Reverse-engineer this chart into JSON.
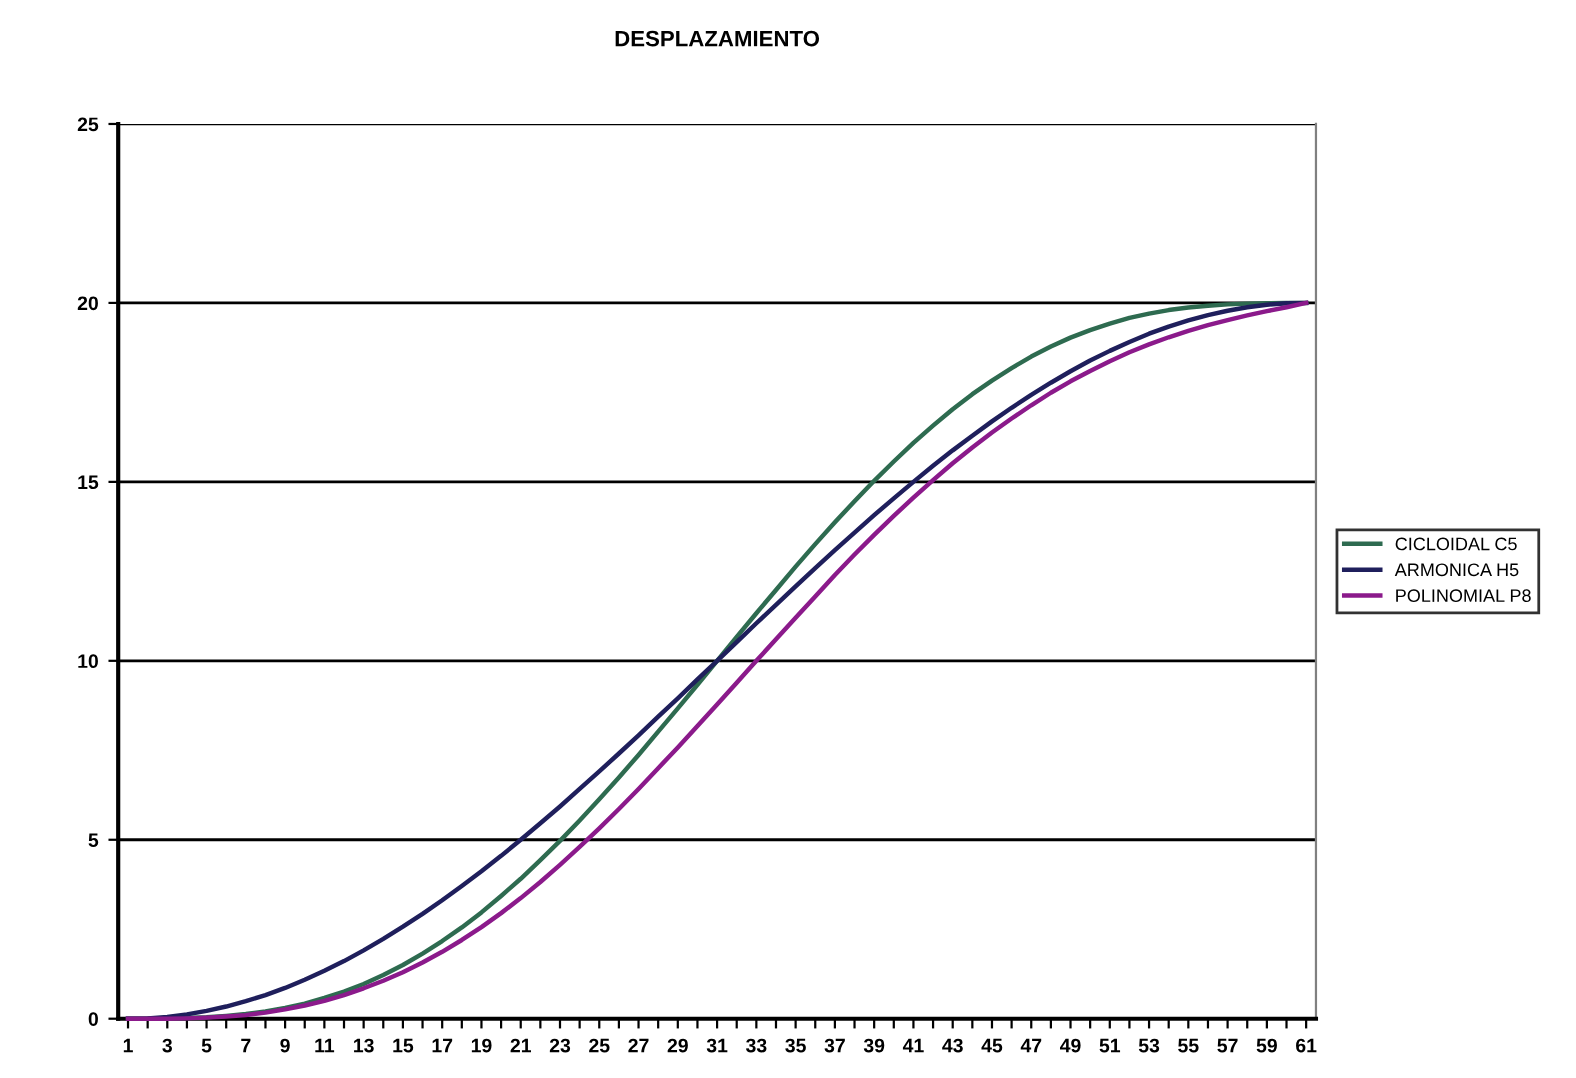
{
  "chart_data": {
    "type": "line",
    "title": "DESPLAZAMIENTO",
    "categories": [
      "1",
      null,
      "3",
      null,
      "5",
      null,
      "7",
      null,
      "9",
      null,
      "11",
      null,
      "13",
      null,
      "15",
      null,
      "17",
      null,
      "19",
      null,
      "21",
      null,
      "23",
      null,
      "25",
      null,
      "27",
      null,
      "29",
      null,
      "31",
      null,
      "33",
      null,
      "35",
      null,
      "37",
      null,
      "39",
      null,
      "41",
      null,
      "43",
      null,
      "45",
      null,
      "47",
      null,
      "49",
      null,
      "51",
      null,
      "53",
      null,
      "55",
      null,
      "57",
      null,
      "59",
      null,
      "61"
    ],
    "series": [
      {
        "name": "CICLOIDAL C5",
        "color": "#2e6b50",
        "values": [
          0,
          0,
          0.01,
          0.02,
          0.04,
          0.08,
          0.13,
          0.2,
          0.3,
          0.42,
          0.58,
          0.76,
          0.97,
          1.22,
          1.5,
          1.82,
          2.17,
          2.55,
          2.97,
          3.43,
          3.91,
          4.43,
          4.97,
          5.54,
          6.13,
          6.74,
          7.37,
          8.02,
          8.67,
          9.33,
          10,
          10.67,
          11.33,
          11.98,
          12.63,
          13.26,
          13.87,
          14.46,
          15.03,
          15.57,
          16.09,
          16.57,
          17.03,
          17.45,
          17.83,
          18.18,
          18.5,
          18.78,
          19.03,
          19.24,
          19.42,
          19.58,
          19.7,
          19.8,
          19.87,
          19.92,
          19.96,
          19.98,
          19.99,
          20,
          20
        ]
      },
      {
        "name": "ARMONICA H5",
        "color": "#1f1f5c",
        "values": [
          0,
          0.01,
          0.05,
          0.12,
          0.22,
          0.34,
          0.49,
          0.66,
          0.86,
          1.09,
          1.34,
          1.61,
          1.91,
          2.23,
          2.57,
          2.93,
          3.31,
          3.71,
          4.12,
          4.55,
          5,
          5.46,
          5.93,
          6.42,
          6.91,
          7.41,
          7.92,
          8.44,
          8.95,
          9.48,
          10,
          10.52,
          11.05,
          11.56,
          12.08,
          12.59,
          13.09,
          13.58,
          14.07,
          14.54,
          15,
          15.45,
          15.88,
          16.29,
          16.69,
          17.07,
          17.43,
          17.77,
          18.09,
          18.39,
          18.66,
          18.91,
          19.14,
          19.34,
          19.51,
          19.66,
          19.78,
          19.88,
          19.95,
          19.99,
          20
        ]
      },
      {
        "name": "POLINOMIAL P8",
        "color": "#8b1a8b",
        "values": [
          0,
          0,
          0,
          0.01,
          0.03,
          0.06,
          0.1,
          0.17,
          0.26,
          0.37,
          0.5,
          0.66,
          0.85,
          1.06,
          1.3,
          1.57,
          1.87,
          2.2,
          2.56,
          2.95,
          3.37,
          3.82,
          4.3,
          4.8,
          5.32,
          5.86,
          6.42,
          7.0,
          7.58,
          8.18,
          8.78,
          9.39,
          10.0,
          10.6,
          11.2,
          11.8,
          12.4,
          12.97,
          13.52,
          14.05,
          14.56,
          15.05,
          15.52,
          15.96,
          16.38,
          16.77,
          17.14,
          17.49,
          17.81,
          18.1,
          18.37,
          18.62,
          18.84,
          19.04,
          19.22,
          19.38,
          19.52,
          19.65,
          19.77,
          19.88,
          20
        ]
      }
    ],
    "ylim": [
      0,
      25
    ],
    "yticks": [
      0,
      5,
      10,
      15,
      20,
      25
    ],
    "grid": "y",
    "legend": "right",
    "marker": "none",
    "line_style": "solid"
  }
}
